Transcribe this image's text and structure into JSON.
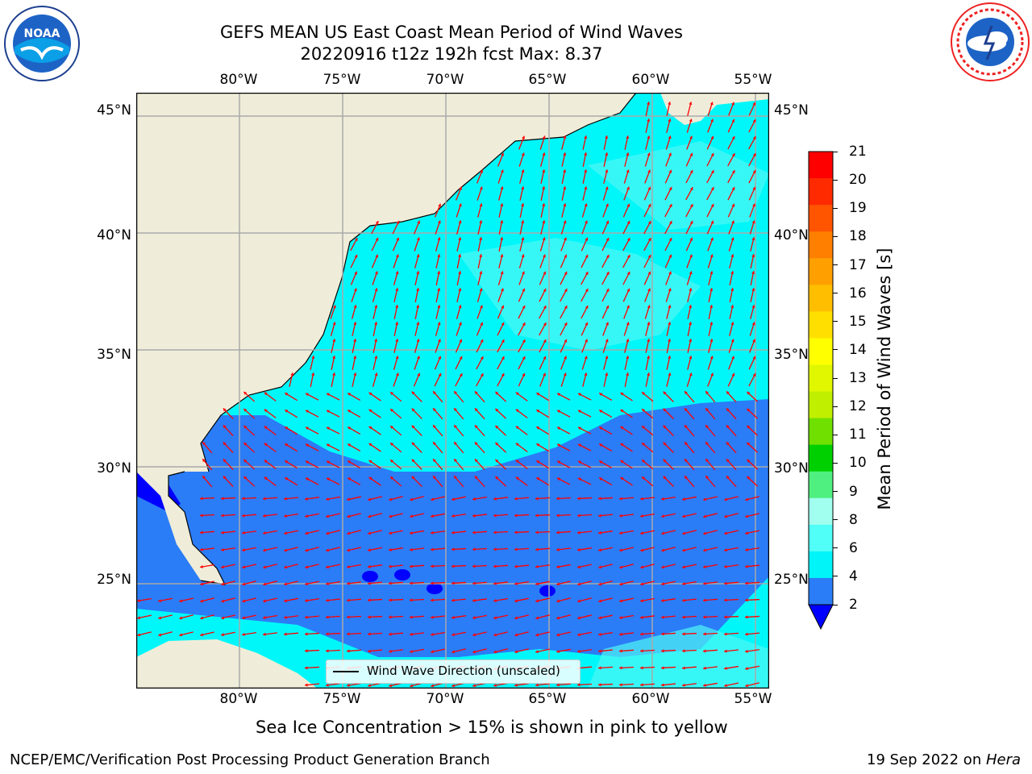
{
  "header": {
    "title_line1": "GEFS MEAN US East Coast Mean Period of Wind Waves",
    "title_line2": "20220916 t12z 192h fcst   Max: 8.37"
  },
  "logos": {
    "left": {
      "text": "NOAA",
      "icon": "noaa-logo"
    },
    "right": {
      "text": "NATIONAL WEATHER SERVICE",
      "icon": "nws-logo"
    }
  },
  "map": {
    "lon_labels": [
      "80°W",
      "75°W",
      "70°W",
      "65°W",
      "60°W",
      "55°W"
    ],
    "lat_labels": [
      "45°N",
      "40°N",
      "35°N",
      "30°N",
      "25°N"
    ],
    "legend_label": "Wind Wave Direction (unscaled)",
    "colors": {
      "land": "#efedd9",
      "band_2_4": "#2b7cf7",
      "band_4_6": "#00f7fa",
      "band_6_8": "#4ff7f4",
      "deep_lt2": "#0000ff",
      "arrow": "#ff0000",
      "grid": "#aaaaaa"
    }
  },
  "colorbar": {
    "label": "Mean Period of Wind Waves [s]",
    "ticks": [
      "21",
      "20",
      "19",
      "18",
      "17",
      "16",
      "15",
      "14",
      "13",
      "12",
      "11",
      "10",
      "9",
      "8",
      "6",
      "4",
      "2"
    ],
    "colors": [
      "#ff0000",
      "#ff2a00",
      "#ff5400",
      "#ff7f00",
      "#ff9f00",
      "#ffbf00",
      "#ffdf00",
      "#ffff00",
      "#e0f700",
      "#c0ef00",
      "#70e000",
      "#00d000",
      "#50f080",
      "#a0ffee",
      "#50fff8",
      "#00f4f8",
      "#2b7cf7"
    ],
    "extend_color": "#0000ff"
  },
  "subtitle": "Sea Ice Concentration > 15% is shown in pink to yellow",
  "footer": {
    "left": "NCEP/EMC/Verification Post Processing Product Generation Branch",
    "right_date": "19 Sep 2022 on ",
    "right_machine": "Hera"
  }
}
